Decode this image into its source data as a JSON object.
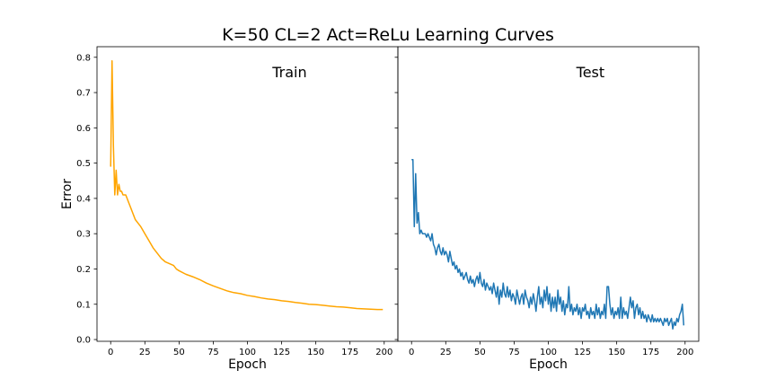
{
  "chart_data": {
    "type": "line",
    "title": "K=50 CL=2 Act=ReLu Learning Curves",
    "ylabel": "Error",
    "shared_y": true,
    "ylim": [
      -0.005,
      0.83
    ],
    "yticks": [
      0.0,
      0.1,
      0.2,
      0.3,
      0.4,
      0.5,
      0.6,
      0.7,
      0.8
    ],
    "ytick_labels": [
      "0.0",
      "0.1",
      "0.2",
      "0.3",
      "0.4",
      "0.5",
      "0.6",
      "0.7",
      "0.8"
    ],
    "panels": [
      {
        "title": "Train",
        "xlabel": "Epoch",
        "xlim": [
          -10,
          210
        ],
        "xticks": [
          0,
          25,
          50,
          75,
          100,
          125,
          150,
          175,
          200
        ],
        "xtick_labels": [
          "0",
          "25",
          "50",
          "75",
          "100",
          "125",
          "150",
          "175",
          "200"
        ],
        "color": "#ffa500",
        "points": [
          [
            0,
            0.49
          ],
          [
            1,
            0.79
          ],
          [
            2,
            0.55
          ],
          [
            3,
            0.41
          ],
          [
            4,
            0.48
          ],
          [
            5,
            0.41
          ],
          [
            6,
            0.44
          ],
          [
            7,
            0.42
          ],
          [
            8,
            0.42
          ],
          [
            9,
            0.41
          ],
          [
            10,
            0.41
          ],
          [
            11,
            0.41
          ],
          [
            12,
            0.4
          ],
          [
            13,
            0.39
          ],
          [
            14,
            0.38
          ],
          [
            15,
            0.37
          ],
          [
            16,
            0.36
          ],
          [
            17,
            0.35
          ],
          [
            18,
            0.34
          ],
          [
            20,
            0.33
          ],
          [
            22,
            0.32
          ],
          [
            25,
            0.3
          ],
          [
            28,
            0.28
          ],
          [
            31,
            0.26
          ],
          [
            34,
            0.245
          ],
          [
            37,
            0.23
          ],
          [
            40,
            0.22
          ],
          [
            43,
            0.215
          ],
          [
            46,
            0.21
          ],
          [
            48,
            0.2
          ],
          [
            50,
            0.195
          ],
          [
            55,
            0.185
          ],
          [
            60,
            0.178
          ],
          [
            65,
            0.17
          ],
          [
            70,
            0.16
          ],
          [
            75,
            0.152
          ],
          [
            80,
            0.145
          ],
          [
            85,
            0.138
          ],
          [
            90,
            0.133
          ],
          [
            95,
            0.13
          ],
          [
            100,
            0.125
          ],
          [
            105,
            0.122
          ],
          [
            110,
            0.118
          ],
          [
            115,
            0.115
          ],
          [
            120,
            0.113
          ],
          [
            125,
            0.11
          ],
          [
            130,
            0.108
          ],
          [
            135,
            0.105
          ],
          [
            140,
            0.103
          ],
          [
            145,
            0.1
          ],
          [
            150,
            0.099
          ],
          [
            155,
            0.097
          ],
          [
            160,
            0.095
          ],
          [
            165,
            0.093
          ],
          [
            170,
            0.092
          ],
          [
            175,
            0.09
          ],
          [
            180,
            0.088
          ],
          [
            185,
            0.087
          ],
          [
            190,
            0.086
          ],
          [
            195,
            0.085
          ],
          [
            199,
            0.085
          ]
        ]
      },
      {
        "title": "Test",
        "xlabel": "Epoch",
        "xlim": [
          -10,
          210
        ],
        "xticks": [
          0,
          25,
          50,
          75,
          100,
          125,
          150,
          175,
          200
        ],
        "xtick_labels": [
          "0",
          "25",
          "50",
          "75",
          "100",
          "125",
          "150",
          "175",
          "200"
        ],
        "color": "#1f77b4",
        "points": [
          [
            0,
            0.51
          ],
          [
            1,
            0.51
          ],
          [
            2,
            0.32
          ],
          [
            3,
            0.47
          ],
          [
            4,
            0.33
          ],
          [
            5,
            0.36
          ],
          [
            6,
            0.3
          ],
          [
            7,
            0.31
          ],
          [
            8,
            0.3
          ],
          [
            9,
            0.3
          ],
          [
            10,
            0.3
          ],
          [
            11,
            0.29
          ],
          [
            12,
            0.3
          ],
          [
            13,
            0.29
          ],
          [
            14,
            0.28
          ],
          [
            15,
            0.3
          ],
          [
            16,
            0.27
          ],
          [
            17,
            0.26
          ],
          [
            18,
            0.24
          ],
          [
            19,
            0.26
          ],
          [
            20,
            0.27
          ],
          [
            21,
            0.25
          ],
          [
            22,
            0.24
          ],
          [
            23,
            0.26
          ],
          [
            24,
            0.24
          ],
          [
            25,
            0.25
          ],
          [
            26,
            0.24
          ],
          [
            27,
            0.22
          ],
          [
            28,
            0.25
          ],
          [
            29,
            0.23
          ],
          [
            30,
            0.21
          ],
          [
            31,
            0.22
          ],
          [
            32,
            0.2
          ],
          [
            33,
            0.21
          ],
          [
            34,
            0.19
          ],
          [
            35,
            0.2
          ],
          [
            36,
            0.18
          ],
          [
            37,
            0.19
          ],
          [
            38,
            0.17
          ],
          [
            39,
            0.18
          ],
          [
            40,
            0.19
          ],
          [
            41,
            0.17
          ],
          [
            42,
            0.16
          ],
          [
            43,
            0.18
          ],
          [
            44,
            0.16
          ],
          [
            45,
            0.17
          ],
          [
            46,
            0.15
          ],
          [
            47,
            0.17
          ],
          [
            48,
            0.18
          ],
          [
            49,
            0.16
          ],
          [
            50,
            0.19
          ],
          [
            51,
            0.16
          ],
          [
            52,
            0.15
          ],
          [
            53,
            0.17
          ],
          [
            54,
            0.14
          ],
          [
            55,
            0.16
          ],
          [
            56,
            0.15
          ],
          [
            57,
            0.14
          ],
          [
            58,
            0.15
          ],
          [
            59,
            0.13
          ],
          [
            60,
            0.16
          ],
          [
            61,
            0.14
          ],
          [
            62,
            0.12
          ],
          [
            63,
            0.15
          ],
          [
            64,
            0.1
          ],
          [
            65,
            0.14
          ],
          [
            66,
            0.12
          ],
          [
            67,
            0.16
          ],
          [
            68,
            0.13
          ],
          [
            69,
            0.12
          ],
          [
            70,
            0.15
          ],
          [
            71,
            0.12
          ],
          [
            72,
            0.14
          ],
          [
            73,
            0.11
          ],
          [
            74,
            0.13
          ],
          [
            75,
            0.12
          ],
          [
            76,
            0.1
          ],
          [
            77,
            0.14
          ],
          [
            78,
            0.12
          ],
          [
            79,
            0.1
          ],
          [
            80,
            0.12
          ],
          [
            81,
            0.13
          ],
          [
            82,
            0.1
          ],
          [
            83,
            0.14
          ],
          [
            84,
            0.12
          ],
          [
            85,
            0.11
          ],
          [
            86,
            0.09
          ],
          [
            87,
            0.12
          ],
          [
            88,
            0.1
          ],
          [
            89,
            0.13
          ],
          [
            90,
            0.11
          ],
          [
            91,
            0.08
          ],
          [
            92,
            0.12
          ],
          [
            93,
            0.15
          ],
          [
            94,
            0.1
          ],
          [
            95,
            0.12
          ],
          [
            96,
            0.09
          ],
          [
            97,
            0.14
          ],
          [
            98,
            0.11
          ],
          [
            99,
            0.15
          ],
          [
            100,
            0.1
          ],
          [
            101,
            0.13
          ],
          [
            102,
            0.08
          ],
          [
            103,
            0.12
          ],
          [
            104,
            0.09
          ],
          [
            105,
            0.12
          ],
          [
            106,
            0.08
          ],
          [
            107,
            0.14
          ],
          [
            108,
            0.1
          ],
          [
            109,
            0.12
          ],
          [
            110,
            0.08
          ],
          [
            111,
            0.11
          ],
          [
            112,
            0.07
          ],
          [
            113,
            0.1
          ],
          [
            114,
            0.09
          ],
          [
            115,
            0.15
          ],
          [
            116,
            0.08
          ],
          [
            117,
            0.1
          ],
          [
            118,
            0.07
          ],
          [
            119,
            0.09
          ],
          [
            120,
            0.08
          ],
          [
            121,
            0.1
          ],
          [
            122,
            0.07
          ],
          [
            123,
            0.09
          ],
          [
            124,
            0.06
          ],
          [
            125,
            0.09
          ],
          [
            126,
            0.08
          ],
          [
            127,
            0.1
          ],
          [
            128,
            0.07
          ],
          [
            129,
            0.08
          ],
          [
            130,
            0.06
          ],
          [
            131,
            0.09
          ],
          [
            132,
            0.07
          ],
          [
            133,
            0.08
          ],
          [
            134,
            0.06
          ],
          [
            135,
            0.1
          ],
          [
            136,
            0.07
          ],
          [
            137,
            0.09
          ],
          [
            138,
            0.06
          ],
          [
            139,
            0.08
          ],
          [
            140,
            0.07
          ],
          [
            141,
            0.1
          ],
          [
            142,
            0.06
          ],
          [
            143,
            0.15
          ],
          [
            144,
            0.15
          ],
          [
            145,
            0.1
          ],
          [
            146,
            0.07
          ],
          [
            147,
            0.09
          ],
          [
            148,
            0.06
          ],
          [
            149,
            0.08
          ],
          [
            150,
            0.07
          ],
          [
            151,
            0.09
          ],
          [
            152,
            0.06
          ],
          [
            153,
            0.12
          ],
          [
            154,
            0.06
          ],
          [
            155,
            0.09
          ],
          [
            156,
            0.07
          ],
          [
            157,
            0.08
          ],
          [
            158,
            0.06
          ],
          [
            159,
            0.09
          ],
          [
            160,
            0.12
          ],
          [
            161,
            0.09
          ],
          [
            162,
            0.11
          ],
          [
            163,
            0.06
          ],
          [
            164,
            0.09
          ],
          [
            165,
            0.1
          ],
          [
            166,
            0.07
          ],
          [
            167,
            0.09
          ],
          [
            168,
            0.06
          ],
          [
            169,
            0.08
          ],
          [
            170,
            0.06
          ],
          [
            171,
            0.07
          ],
          [
            172,
            0.05
          ],
          [
            173,
            0.07
          ],
          [
            174,
            0.06
          ],
          [
            175,
            0.05
          ],
          [
            176,
            0.07
          ],
          [
            177,
            0.05
          ],
          [
            178,
            0.06
          ],
          [
            179,
            0.05
          ],
          [
            180,
            0.06
          ],
          [
            181,
            0.05
          ],
          [
            182,
            0.06
          ],
          [
            183,
            0.05
          ],
          [
            184,
            0.04
          ],
          [
            185,
            0.06
          ],
          [
            186,
            0.05
          ],
          [
            187,
            0.06
          ],
          [
            188,
            0.04
          ],
          [
            189,
            0.05
          ],
          [
            190,
            0.06
          ],
          [
            191,
            0.03
          ],
          [
            192,
            0.05
          ],
          [
            193,
            0.04
          ],
          [
            194,
            0.06
          ],
          [
            195,
            0.05
          ],
          [
            196,
            0.07
          ],
          [
            197,
            0.08
          ],
          [
            198,
            0.1
          ],
          [
            199,
            0.04
          ]
        ]
      }
    ]
  }
}
